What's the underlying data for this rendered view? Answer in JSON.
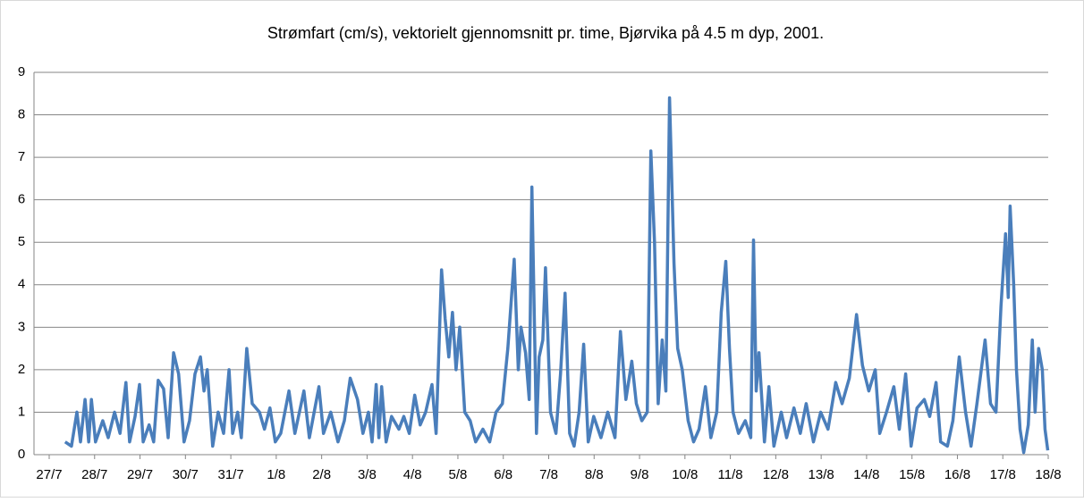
{
  "chart_data": {
    "type": "line",
    "title": "Strømfart (cm/s), vektorielt gjennomsnitt pr. time, Bjørvika på 4.5 m dyp, 2001.",
    "xlim": [
      0,
      22
    ],
    "xticks": [
      {
        "value": 0,
        "label": "27/7"
      },
      {
        "value": 1,
        "label": "28/7"
      },
      {
        "value": 2,
        "label": "29/7"
      },
      {
        "value": 3,
        "label": "30/7"
      },
      {
        "value": 4,
        "label": "31/7"
      },
      {
        "value": 5,
        "label": "1/8"
      },
      {
        "value": 6,
        "label": "2/8"
      },
      {
        "value": 7,
        "label": "3/8"
      },
      {
        "value": 8,
        "label": "4/8"
      },
      {
        "value": 9,
        "label": "5/8"
      },
      {
        "value": 10,
        "label": "6/8"
      },
      {
        "value": 11,
        "label": "7/8"
      },
      {
        "value": 12,
        "label": "8/8"
      },
      {
        "value": 13,
        "label": "9/8"
      },
      {
        "value": 14,
        "label": "10/8"
      },
      {
        "value": 15,
        "label": "11/8"
      },
      {
        "value": 16,
        "label": "12/8"
      },
      {
        "value": 17,
        "label": "13/8"
      },
      {
        "value": 18,
        "label": "14/8"
      },
      {
        "value": 19,
        "label": "15/8"
      },
      {
        "value": 20,
        "label": "16/8"
      },
      {
        "value": 21,
        "label": "17/8"
      },
      {
        "value": 22,
        "label": "18/8"
      }
    ],
    "ylim": [
      0,
      9
    ],
    "yticks": [
      0,
      1,
      2,
      3,
      4,
      5,
      6,
      7,
      8,
      9
    ],
    "grid": true,
    "series": [
      {
        "color": "#4a7ebb",
        "x": [
          0.35,
          0.49,
          0.61,
          0.69,
          0.79,
          0.87,
          0.93,
          1.02,
          1.18,
          1.3,
          1.44,
          1.56,
          1.69,
          1.77,
          1.89,
          1.99,
          2.07,
          2.2,
          2.3,
          2.4,
          2.52,
          2.62,
          2.74,
          2.85,
          2.97,
          3.09,
          3.21,
          3.33,
          3.41,
          3.48,
          3.6,
          3.72,
          3.84,
          3.96,
          4.04,
          4.15,
          4.23,
          4.35,
          4.47,
          4.63,
          4.74,
          4.86,
          4.98,
          5.1,
          5.28,
          5.41,
          5.61,
          5.73,
          5.94,
          6.04,
          6.2,
          6.36,
          6.5,
          6.63,
          6.79,
          6.91,
          7.03,
          7.11,
          7.2,
          7.26,
          7.32,
          7.42,
          7.54,
          7.7,
          7.81,
          7.93,
          8.05,
          8.17,
          8.29,
          8.43,
          8.52,
          8.64,
          8.72,
          8.8,
          8.88,
          8.96,
          9.04,
          9.15,
          9.27,
          9.39,
          9.55,
          9.7,
          9.84,
          9.98,
          10.1,
          10.24,
          10.33,
          10.39,
          10.49,
          10.57,
          10.63,
          10.73,
          10.79,
          10.87,
          10.93,
          11.04,
          11.16,
          11.26,
          11.36,
          11.46,
          11.56,
          11.67,
          11.77,
          11.87,
          11.99,
          12.15,
          12.3,
          12.46,
          12.58,
          12.7,
          12.83,
          12.93,
          13.05,
          13.17,
          13.25,
          13.33,
          13.41,
          13.5,
          13.58,
          13.66,
          13.76,
          13.84,
          13.94,
          14.07,
          14.19,
          14.31,
          14.45,
          14.57,
          14.7,
          14.8,
          14.9,
          14.98,
          15.06,
          15.18,
          15.33,
          15.45,
          15.51,
          15.57,
          15.63,
          15.75,
          15.85,
          15.96,
          16.12,
          16.24,
          16.4,
          16.54,
          16.67,
          16.83,
          16.99,
          17.15,
          17.32,
          17.46,
          17.62,
          17.78,
          17.91,
          18.05,
          18.19,
          18.29,
          18.44,
          18.6,
          18.72,
          18.86,
          18.98,
          19.11,
          19.27,
          19.39,
          19.53,
          19.63,
          19.78,
          19.9,
          20.04,
          20.18,
          20.3,
          20.43,
          20.61,
          20.73,
          20.85,
          20.96,
          21.06,
          21.12,
          21.16,
          21.24,
          21.3,
          21.38,
          21.46,
          21.56,
          21.65,
          21.71,
          21.79,
          21.87,
          21.93,
          21.99
        ],
        "values": [
          0.3,
          0.2,
          1.0,
          0.3,
          1.3,
          0.3,
          1.3,
          0.3,
          0.8,
          0.4,
          1.0,
          0.5,
          1.7,
          0.3,
          0.9,
          1.65,
          0.3,
          0.7,
          0.3,
          1.75,
          1.55,
          0.4,
          2.4,
          1.9,
          0.3,
          0.8,
          1.9,
          2.3,
          1.5,
          2.0,
          0.2,
          1.0,
          0.5,
          2.0,
          0.5,
          1.0,
          0.4,
          2.5,
          1.2,
          1.0,
          0.6,
          1.1,
          0.3,
          0.5,
          1.5,
          0.5,
          1.5,
          0.4,
          1.6,
          0.5,
          1.0,
          0.3,
          0.8,
          1.8,
          1.3,
          0.5,
          1.0,
          0.3,
          1.65,
          0.4,
          1.6,
          0.3,
          0.9,
          0.6,
          0.9,
          0.5,
          1.4,
          0.7,
          1.0,
          1.65,
          0.5,
          4.35,
          3.2,
          2.3,
          3.35,
          2.0,
          3.0,
          1.0,
          0.8,
          0.3,
          0.6,
          0.3,
          1.0,
          1.2,
          2.5,
          4.6,
          2.0,
          3.0,
          2.4,
          1.3,
          6.3,
          0.5,
          2.3,
          2.7,
          4.4,
          1.0,
          0.5,
          1.9,
          3.8,
          0.5,
          0.2,
          1.0,
          2.6,
          0.3,
          0.9,
          0.4,
          1.0,
          0.4,
          2.9,
          1.3,
          2.2,
          1.2,
          0.8,
          1.0,
          7.15,
          5.0,
          1.2,
          2.7,
          1.5,
          8.4,
          4.5,
          2.5,
          2.0,
          0.8,
          0.3,
          0.6,
          1.6,
          0.4,
          1.0,
          3.35,
          4.55,
          2.5,
          1.0,
          0.5,
          0.8,
          0.4,
          5.05,
          1.5,
          2.4,
          0.3,
          1.6,
          0.2,
          1.0,
          0.4,
          1.1,
          0.5,
          1.2,
          0.3,
          1.0,
          0.6,
          1.7,
          1.2,
          1.8,
          3.3,
          2.1,
          1.5,
          2.0,
          0.5,
          1.0,
          1.6,
          0.6,
          1.9,
          0.2,
          1.1,
          1.3,
          0.9,
          1.7,
          0.3,
          0.2,
          0.8,
          2.3,
          1.0,
          0.2,
          1.2,
          2.7,
          1.2,
          1.0,
          3.5,
          5.2,
          3.7,
          5.85,
          4.0,
          2.0,
          0.6,
          0.05,
          0.7,
          2.7,
          1.0,
          2.5,
          2.0,
          0.6,
          0.1
        ]
      }
    ]
  }
}
